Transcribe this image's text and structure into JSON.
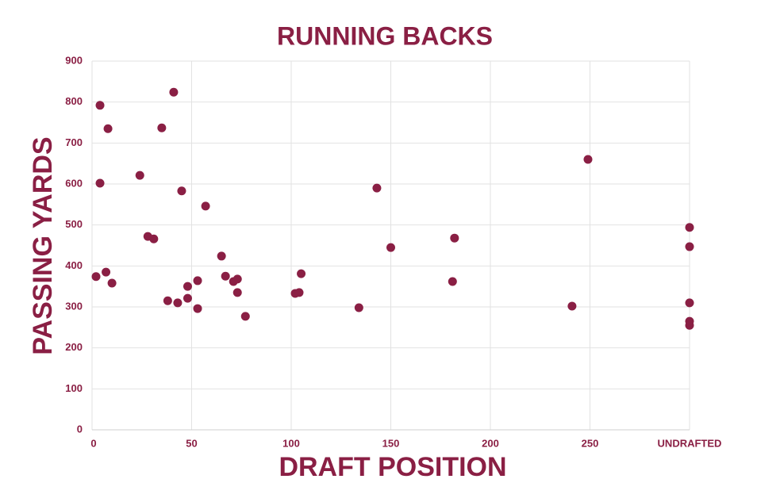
{
  "chart_data": {
    "type": "scatter",
    "title": "RUNNING BACKS",
    "x_label": "DRAFT POSITION",
    "y_label": "PASSING YARDS",
    "color": "#8a1f44",
    "grid": true,
    "xlim": [
      0,
      300
    ],
    "ylim": [
      0,
      900
    ],
    "xticks": [
      0,
      50,
      100,
      150,
      200,
      250,
      {
        "value": 300,
        "label": "UNDRAFTED"
      }
    ],
    "yticks": [
      0,
      100,
      200,
      300,
      400,
      500,
      600,
      700,
      800,
      900
    ],
    "series": [
      {
        "name": "Running backs",
        "x": [
          2,
          4,
          4,
          8,
          7,
          10,
          24,
          28,
          31,
          35,
          38,
          41,
          43,
          45,
          48,
          48,
          53,
          53,
          57,
          65,
          67,
          71,
          73,
          73,
          77,
          102,
          104,
          105,
          134,
          143,
          150,
          181,
          182,
          241,
          249,
          300,
          300,
          300,
          300,
          300
        ],
        "values": [
          374,
          792,
          602,
          735,
          385,
          358,
          621,
          472,
          466,
          737,
          315,
          824,
          310,
          583,
          350,
          321,
          364,
          296,
          546,
          424,
          375,
          362,
          368,
          335,
          277,
          333,
          335,
          381,
          298,
          590,
          445,
          362,
          468,
          302,
          660,
          494,
          447,
          310,
          265,
          255
        ]
      }
    ]
  }
}
